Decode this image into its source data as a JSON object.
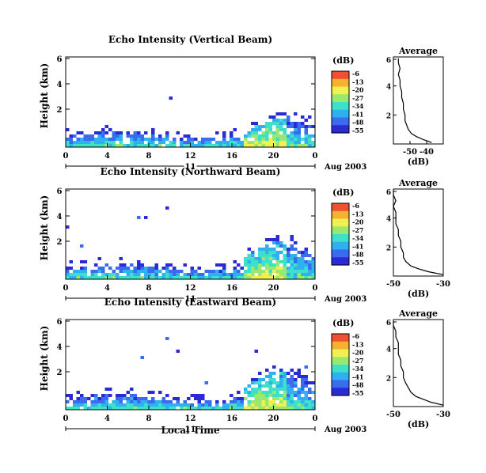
{
  "figure": {
    "date_label": "Aug 2003",
    "day_label": "11",
    "xlabel": "Local Time",
    "x_ticks": [
      "0",
      "4",
      "8",
      "12",
      "16",
      "20",
      "0"
    ],
    "height_ticks": [
      "6",
      "4",
      "2"
    ],
    "height_ylabel": "Height (km)",
    "colorbar_unit": "(dB)",
    "colorbar_ticks": [
      "-6",
      "-13",
      "-20",
      "-27",
      "-34",
      "-41",
      "-48",
      "-55"
    ],
    "colormap": [
      "#2b2bd6",
      "#3a6cf0",
      "#2fb0f0",
      "#3ee0c8",
      "#9be870",
      "#f0f050",
      "#f8b030",
      "#f05030"
    ],
    "avg_title": "Average",
    "avg_xlabel": "(dB)"
  },
  "chart_data": [
    {
      "type": "heatmap",
      "title": "Echo Intensity (Vertical Beam)",
      "xlabel": "",
      "ylabel": "Height (km)",
      "xlim": [
        0,
        24
      ],
      "ylim": [
        0,
        6
      ],
      "colorbar": {
        "label": "(dB)",
        "range": [
          -55,
          -6
        ]
      },
      "profile": {
        "title": "Average",
        "xlabel": "(dB)",
        "xlim": [
          -60,
          -30
        ],
        "ylim": [
          0,
          6
        ],
        "x_ticks": [
          "-50",
          "-40"
        ],
        "height_km": [
          0.1,
          0.3,
          0.5,
          0.7,
          1.0,
          1.3,
          1.6,
          2.0,
          2.4,
          2.8,
          3.2,
          3.6,
          4.0,
          4.4,
          4.8,
          5.2,
          5.6,
          5.9
        ],
        "db": [
          -37,
          -42,
          -46,
          -49,
          -51,
          -52,
          -53,
          -53,
          -54,
          -54,
          -55,
          -55,
          -56,
          -56,
          -57,
          -56,
          -57,
          -57
        ]
      }
    },
    {
      "type": "heatmap",
      "title": "Echo Intensity (Northward Beam)",
      "xlabel": "",
      "ylabel": "Height (km)",
      "xlim": [
        0,
        24
      ],
      "ylim": [
        0,
        6
      ],
      "colorbar": {
        "label": "(dB)",
        "range": [
          -55,
          -6
        ]
      },
      "profile": {
        "title": "Average",
        "xlabel": "(dB)",
        "xlim": [
          -50,
          -30
        ],
        "ylim": [
          0,
          6
        ],
        "x_ticks": [
          "-50",
          "-30"
        ],
        "height_km": [
          0.1,
          0.3,
          0.5,
          0.7,
          1.0,
          1.3,
          1.6,
          2.0,
          2.4,
          2.8,
          3.2,
          3.6,
          4.0,
          4.4,
          4.8,
          5.2,
          5.6,
          5.9
        ],
        "db": [
          -30,
          -36,
          -40,
          -43,
          -45,
          -46,
          -46,
          -47,
          -47,
          -48,
          -48,
          -49,
          -49,
          -49,
          -50,
          -49,
          -50,
          -50
        ]
      }
    },
    {
      "type": "heatmap",
      "title": "Echo Intensity (Eastward Beam)",
      "xlabel": "Local Time",
      "ylabel": "Height (km)",
      "xlim": [
        0,
        24
      ],
      "ylim": [
        0,
        6
      ],
      "colorbar": {
        "label": "(dB)",
        "range": [
          -55,
          -6
        ]
      },
      "profile": {
        "title": "Average",
        "xlabel": "(dB)",
        "xlim": [
          -50,
          -30
        ],
        "ylim": [
          0,
          6
        ],
        "x_ticks": [
          "-50",
          "-30"
        ],
        "height_km": [
          0.1,
          0.3,
          0.5,
          0.7,
          1.0,
          1.3,
          1.6,
          2.0,
          2.4,
          2.8,
          3.2,
          3.6,
          4.0,
          4.4,
          4.8,
          5.2,
          5.6,
          5.9
        ],
        "db": [
          -30,
          -35,
          -38,
          -41,
          -43,
          -44,
          -45,
          -46,
          -46,
          -47,
          -47,
          -48,
          -48,
          -48,
          -49,
          -49,
          -50,
          -50
        ]
      }
    }
  ]
}
